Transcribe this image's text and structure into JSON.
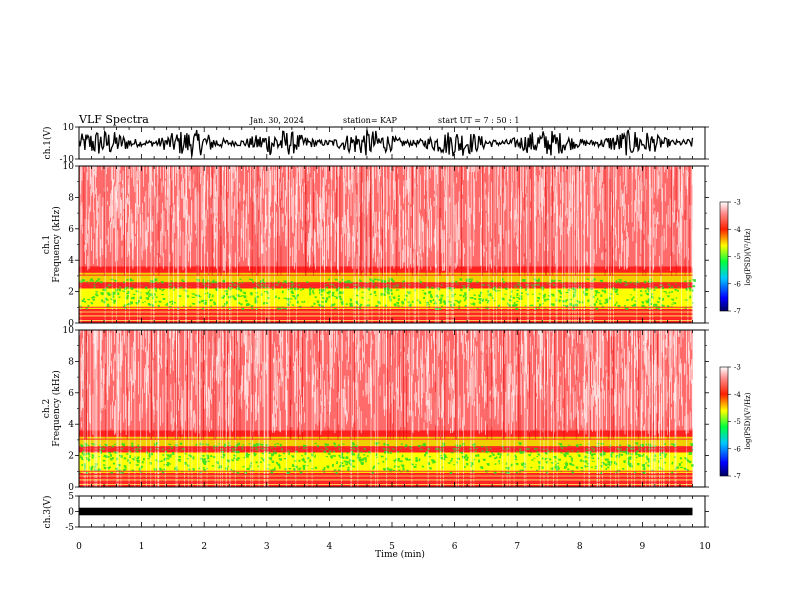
{
  "header": {
    "title": "VLF Spectra",
    "date": "Jan. 30, 2024",
    "station": "station= KAP",
    "start": "start  UT =   7 : 50 : 1"
  },
  "chart_data": [
    {
      "type": "line",
      "name": "ch1-waveform",
      "ylabel": "ch.1(V)",
      "ylim": [
        -10,
        10
      ],
      "yticks": [
        "10",
        "-10"
      ],
      "xlim": [
        0,
        10
      ],
      "color": "#000000"
    },
    {
      "type": "heatmap",
      "name": "ch1-spectrogram",
      "ylabel": "ch.1\nFrequency (kHz)",
      "ylim": [
        0,
        10
      ],
      "yticks": [
        "0",
        "2",
        "4",
        "6",
        "8",
        "10"
      ],
      "xlim": [
        0,
        10
      ],
      "data_end_min": 9.8,
      "colorbar": {
        "label": "log(PSD)(V²/Hz)",
        "range": [
          -7,
          -3
        ],
        "ticks": [
          "-3",
          "-4",
          "-5",
          "-6",
          "-7"
        ]
      }
    },
    {
      "type": "heatmap",
      "name": "ch2-spectrogram",
      "ylabel": "ch.2\nFrequency (kHz)",
      "ylim": [
        0,
        10
      ],
      "yticks": [
        "0",
        "2",
        "4",
        "6",
        "8",
        "10"
      ],
      "xlim": [
        0,
        10
      ],
      "data_end_min": 9.8,
      "colorbar": {
        "label": "log(PSD)(V²/Hz)",
        "range": [
          -7,
          -3
        ],
        "ticks": [
          "-3",
          "-4",
          "-5",
          "-6",
          "-7"
        ]
      }
    },
    {
      "type": "line",
      "name": "ch3-waveform",
      "ylabel": "ch.3(V)",
      "ylim": [
        -5,
        5
      ],
      "yticks": [
        "5",
        "0",
        "-5"
      ],
      "xlim": [
        0,
        10
      ],
      "color": "#000000"
    }
  ],
  "xaxis": {
    "label": "Time (min)",
    "ticks": [
      "0",
      "1",
      "2",
      "3",
      "4",
      "5",
      "6",
      "7",
      "8",
      "9",
      "10"
    ]
  },
  "colors": {
    "spec_low": "#ffffff",
    "spec_mid": "#ff2020",
    "spec_high": "#ffff00",
    "spec_peak": "#22dd22"
  }
}
